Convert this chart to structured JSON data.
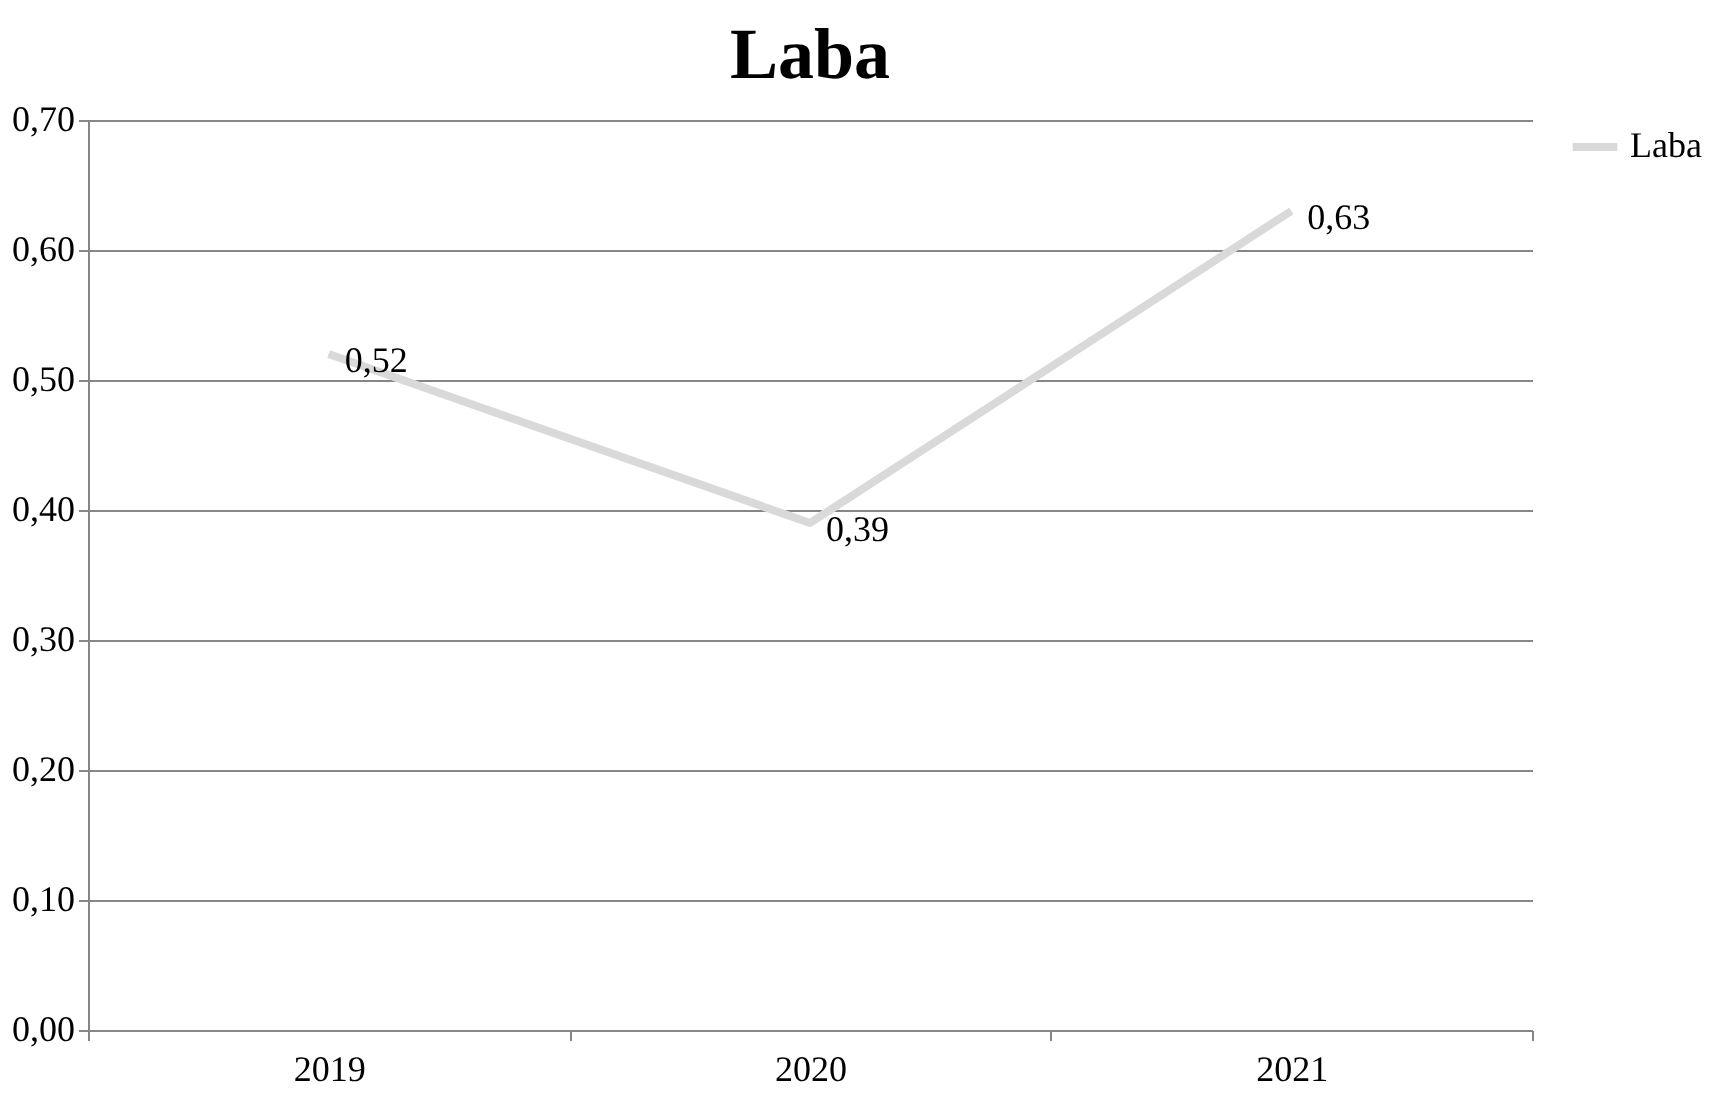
{
  "chart_data": {
    "type": "line",
    "title": "Laba",
    "categories": [
      "2019",
      "2020",
      "2021"
    ],
    "series": [
      {
        "name": "Laba",
        "color": "#d9d9d9",
        "values": [
          0.52,
          0.39,
          0.63
        ],
        "value_labels": [
          "0,52",
          "0,39",
          "0,63"
        ]
      }
    ],
    "ylim": [
      0,
      0.7
    ],
    "yticks": [
      {
        "value": 0,
        "label": "0,00"
      },
      {
        "value": 0.1,
        "label": "0,10"
      },
      {
        "value": 0.2,
        "label": "0,20"
      },
      {
        "value": 0.3,
        "label": "0,30"
      },
      {
        "value": 0.4,
        "label": "0,40"
      },
      {
        "value": 0.5,
        "label": "0,50"
      },
      {
        "value": 0.6,
        "label": "0,60"
      },
      {
        "value": 0.7,
        "label": "0,70"
      }
    ],
    "grid": "y",
    "legend": "right",
    "marker": "none",
    "line_style": "solid"
  }
}
